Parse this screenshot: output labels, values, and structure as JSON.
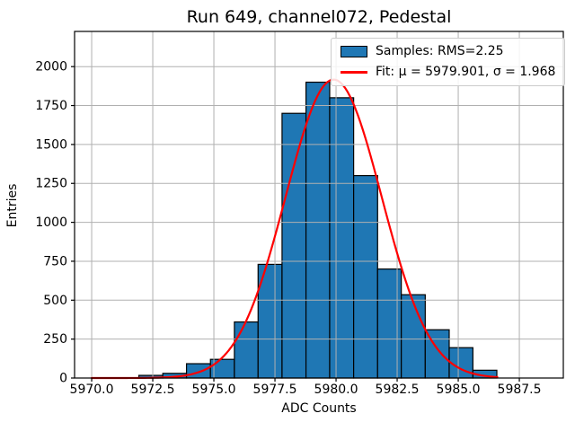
{
  "title": "Run 649, channel072, Pedestal",
  "axes": {
    "xlabel": "ADC Counts",
    "ylabel": "Entries"
  },
  "legend": {
    "samples_label": "Samples: RMS=2.25",
    "fit_label": "Fit: μ = 5979.901, σ = 1.968"
  },
  "colors": {
    "bar_fill": "#1f77b4",
    "bar_edge": "#000000",
    "fit_line": "#ff0000",
    "grid": "#b0b0b0",
    "axis": "#000000",
    "background": "#ffffff",
    "text": "#000000"
  },
  "chart_data": {
    "type": "histogram",
    "title": "Run 649, channel072, Pedestal",
    "xlabel": "ADC Counts",
    "ylabel": "Entries",
    "bin_edges": [
      5971.93,
      5972.91,
      5973.88,
      5974.86,
      5975.84,
      5976.81,
      5977.79,
      5978.77,
      5979.74,
      5980.72,
      5981.7,
      5982.67,
      5983.65,
      5984.63,
      5985.6,
      5986.58
    ],
    "counts": [
      17,
      30,
      92,
      120,
      360,
      730,
      1700,
      1900,
      1800,
      1300,
      700,
      535,
      310,
      195,
      50
    ],
    "rms": 2.25,
    "fit": {
      "mu": 5979.901,
      "sigma": 1.968,
      "amplitude": 1917,
      "x_range": [
        5970.0,
        5986.6
      ]
    },
    "x_ticks": [
      {
        "value": 5970.0,
        "label": "5970.0"
      },
      {
        "value": 5972.5,
        "label": "5972.5"
      },
      {
        "value": 5975.0,
        "label": "5975.0"
      },
      {
        "value": 5977.5,
        "label": "5977.5"
      },
      {
        "value": 5980.0,
        "label": "5980.0"
      },
      {
        "value": 5982.5,
        "label": "5982.5"
      },
      {
        "value": 5985.0,
        "label": "5985.0"
      },
      {
        "value": 5987.5,
        "label": "5987.5"
      }
    ],
    "y_ticks": [
      {
        "value": 0,
        "label": "0"
      },
      {
        "value": 250,
        "label": "250"
      },
      {
        "value": 500,
        "label": "500"
      },
      {
        "value": 750,
        "label": "750"
      },
      {
        "value": 1000,
        "label": "1000"
      },
      {
        "value": 1250,
        "label": "1250"
      },
      {
        "value": 1500,
        "label": "1500"
      },
      {
        "value": 1750,
        "label": "1750"
      },
      {
        "value": 2000,
        "label": "2000"
      }
    ],
    "xlim": [
      5969.3,
      5989.3
    ],
    "ylim": [
      0,
      2226
    ],
    "grid": true,
    "legend_position": "upper right"
  }
}
